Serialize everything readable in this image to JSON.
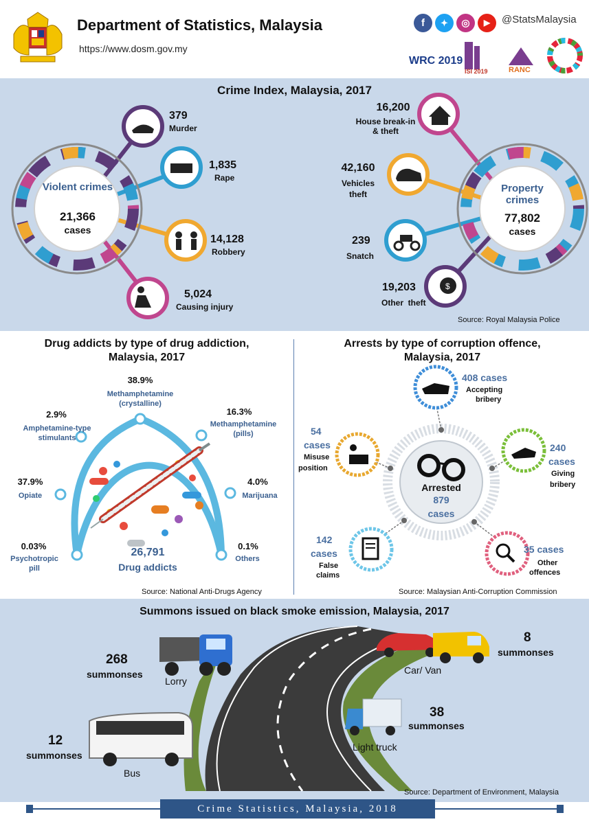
{
  "header": {
    "title": "Department of Statistics, Malaysia",
    "url": "https://www.dosm.gov.my",
    "social_handle": "@StatsMalaysia",
    "social_icons": [
      "facebook-icon",
      "twitter-icon",
      "instagram-icon",
      "youtube-icon"
    ],
    "logos": [
      "WRC 2019",
      "ISI 2019",
      "RANC"
    ]
  },
  "crime_index": {
    "title": "Crime Index, Malaysia, 2017",
    "violent": {
      "label": "Violent crimes",
      "total": "21,366",
      "unit": "cases",
      "items": [
        {
          "value": "379",
          "label": "Murder"
        },
        {
          "value": "1,835",
          "label": "Rape"
        },
        {
          "value": "14,128",
          "label": "Robbery"
        },
        {
          "value": "5,024",
          "label": "Causing injury"
        }
      ]
    },
    "property": {
      "label": "Property crimes",
      "total": "77,802",
      "unit": "cases",
      "items": [
        {
          "value": "16,200",
          "label": "House break-in",
          "label2": "& theft"
        },
        {
          "value": "42,160",
          "label": "Vehicles",
          "label2": "theft"
        },
        {
          "value": "239",
          "label": "Snatch"
        },
        {
          "value": "19,203",
          "label": "Other  theft"
        }
      ]
    },
    "source": "Source: Royal Malaysia Police"
  },
  "drugs": {
    "title_line1": "Drug addicts by type of drug addiction,",
    "title_line2": "Malaysia, 2017",
    "total": "26,791",
    "total_label": "Drug addicts",
    "items": [
      {
        "pct": "38.9%",
        "label": "Methamphetamine",
        "label2": "(crystalline)"
      },
      {
        "pct": "16.3%",
        "label": "Methamphetamine",
        "label2": "(pills)"
      },
      {
        "pct": "2.9%",
        "label": "Amphetamine-type",
        "label2": "stimulants"
      },
      {
        "pct": "37.9%",
        "label": "Opiate"
      },
      {
        "pct": "4.0%",
        "label": "Marijuana"
      },
      {
        "pct": "0.03%",
        "label": "Psychotropic",
        "label2": "pill"
      },
      {
        "pct": "0.1%",
        "label": "Others"
      }
    ],
    "source": "Source: National Anti-Drugs Agency"
  },
  "corruption": {
    "title_line1": "Arrests by type of corruption offence,",
    "title_line2": "Malaysia, 2017",
    "center_label": "Arrested",
    "center_total": "879",
    "center_unit": "cases",
    "items": [
      {
        "value": "408 cases",
        "label": "Accepting",
        "label2": "bribery"
      },
      {
        "value": "54",
        "value2": "cases",
        "label": "Misuse",
        "label2": "position"
      },
      {
        "value": "240",
        "value2": "cases",
        "label": "Giving",
        "label2": "bribery"
      },
      {
        "value": "142",
        "value2": "cases",
        "label": "False",
        "label2": "claims"
      },
      {
        "value": "35 cases",
        "label": "Other",
        "label2": "offences"
      }
    ],
    "source": "Source: Malaysian Anti-Corruption Commission"
  },
  "summons": {
    "title": "Summons issued on black smoke emission, Malaysia, 2017",
    "items": [
      {
        "value": "268",
        "unit": "summonses",
        "label": "Lorry"
      },
      {
        "value": "8",
        "unit": "summonses",
        "label": "Car/ Van"
      },
      {
        "value": "38",
        "unit": "summonses",
        "label": "Light truck"
      },
      {
        "value": "12",
        "unit": "summonses",
        "label": "Bus"
      }
    ],
    "source": "Source: Department of Environment, Malaysia"
  },
  "footer": {
    "text": "Crime Statistics, Malaysia, 2018"
  },
  "colors": {
    "purple": "#5b3a78",
    "blue": "#2f9ed0",
    "orange": "#f0a830",
    "magenta": "#c0468e",
    "navy": "#2e5587",
    "section_bg": "#c9d8ea",
    "accent_text": "#3a5f8f",
    "green": "#7bbf3a",
    "pink": "#e0607e"
  }
}
